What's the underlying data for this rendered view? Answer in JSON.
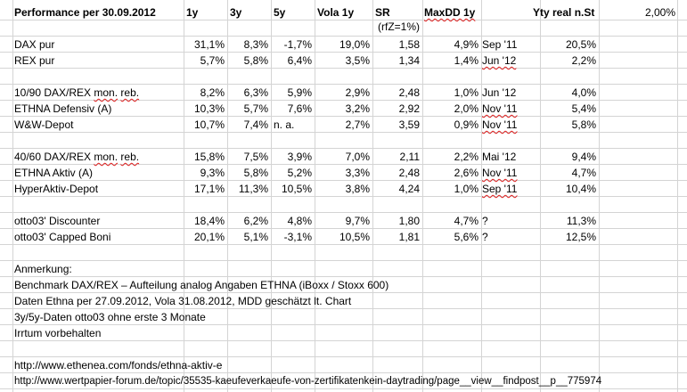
{
  "header": {
    "title": "Performance per 30.09.2012",
    "col_1y": "1y",
    "col_3y": "3y",
    "col_5y": "5y",
    "col_vola": "Vola 1y",
    "col_sr": "SR",
    "col_maxdd": "MaxDD 1y",
    "col_yty": "Yty real n.St",
    "col_rate": "2,00%"
  },
  "subheader": {
    "sr_note": "(rfZ=1%)"
  },
  "rows": [
    {
      "name": "DAX pur",
      "y1": "31,1%",
      "y3": "8,3%",
      "y5": "-1,7%",
      "vola": "19,0%",
      "sr": "1,58",
      "maxdd": "4,9%",
      "date": "Sep '11",
      "yty": "20,5%"
    },
    {
      "name": "REX pur",
      "y1": "5,7%",
      "y3": "5,8%",
      "y5": "6,4%",
      "vola": "3,5%",
      "sr": "1,34",
      "maxdd": "1,4%",
      "date": "Jun '12",
      "yty": "2,2%"
    },
    {
      "name": "10/90 DAX/REX mon. reb.",
      "y1": "8,2%",
      "y3": "6,3%",
      "y5": "5,9%",
      "vola": "2,9%",
      "sr": "2,48",
      "maxdd": "1,0%",
      "date": "Jun '12",
      "yty": "4,0%"
    },
    {
      "name": "ETHNA Defensiv (A)",
      "y1": "10,3%",
      "y3": "5,7%",
      "y5": "7,6%",
      "vola": "3,2%",
      "sr": "2,92",
      "maxdd": "2,0%",
      "date": "Nov '11",
      "yty": "5,4%"
    },
    {
      "name": "W&W-Depot",
      "y1": "10,7%",
      "y3": "7,4%",
      "y5": "n. a.",
      "vola": "2,7%",
      "sr": "3,59",
      "maxdd": "0,9%",
      "date": "Nov '11",
      "yty": "5,8%"
    },
    {
      "name": "40/60 DAX/REX mon. reb.",
      "y1": "15,8%",
      "y3": "7,5%",
      "y5": "3,9%",
      "vola": "7,0%",
      "sr": "2,11",
      "maxdd": "2,2%",
      "date": "Mai '12",
      "yty": "9,4%"
    },
    {
      "name": "ETHNA Aktiv (A)",
      "y1": "9,3%",
      "y3": "5,8%",
      "y5": "5,2%",
      "vola": "3,3%",
      "sr": "2,48",
      "maxdd": "2,6%",
      "date": "Nov '11",
      "yty": "4,7%"
    },
    {
      "name": "HyperAktiv-Depot",
      "y1": "17,1%",
      "y3": "11,3%",
      "y5": "10,5%",
      "vola": "3,8%",
      "sr": "4,24",
      "maxdd": "1,0%",
      "date": "Sep '11",
      "yty": "10,4%"
    },
    {
      "name": "otto03' Discounter",
      "y1": "18,4%",
      "y3": "6,2%",
      "y5": "4,8%",
      "vola": "9,7%",
      "sr": "1,80",
      "maxdd": "4,7%",
      "date": "?",
      "yty": "11,3%"
    },
    {
      "name": "otto03' Capped Boni",
      "y1": "20,1%",
      "y3": "5,1%",
      "y5": "-3,1%",
      "vola": "10,5%",
      "sr": "1,81",
      "maxdd": "5,6%",
      "date": "?",
      "yty": "12,5%"
    }
  ],
  "notes": {
    "heading": "Anmerkung:",
    "line1": "Benchmark DAX/REX – Aufteilung analog Angaben ETHNA (iBoxx / Stoxx 600)",
    "line2": "Daten Ethna per 27.09.2012, Vola 31.08.2012, MDD geschätzt lt. Chart",
    "line3": "3y/5y-Daten otto03 ohne erste 3 Monate",
    "line4": "Irrtum vorbehalten"
  },
  "links": {
    "link1": "http://www.ethenea.com/fonds/ethna-aktiv-e",
    "link2": "http://www.wertpapier-forum.de/topic/35535-kaeufeverkaeufe-von-zertifikatenkein-daytrading/page__view__findpost__p__775974"
  }
}
